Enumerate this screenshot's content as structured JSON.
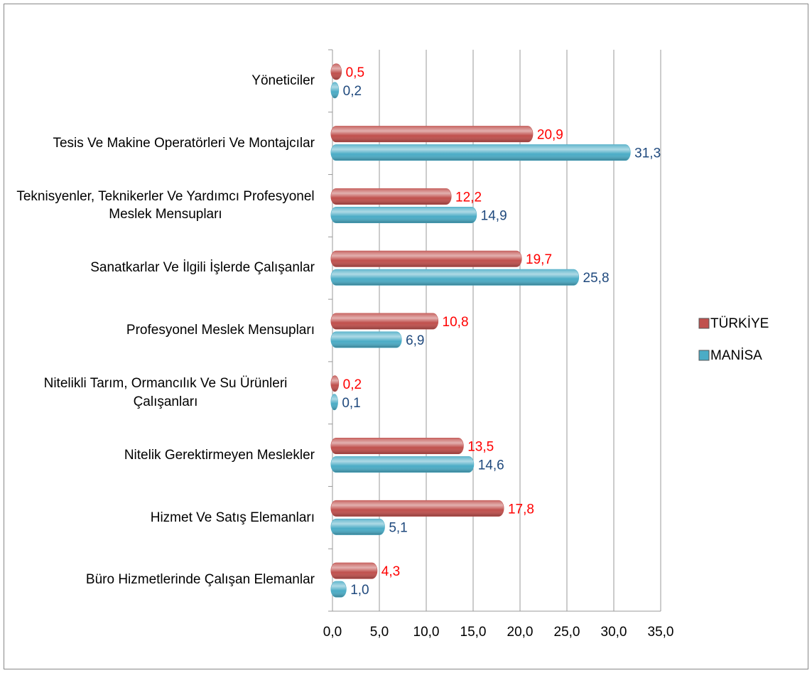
{
  "chart_data": {
    "type": "bar",
    "orientation": "horizontal",
    "categories": [
      "Yöneticiler",
      "Tesis Ve Makine Operatörleri Ve Montajcılar",
      "Teknisyenler, Teknikerler Ve Yardımcı Profesyonel Meslek Mensupları",
      "Sanatkarlar Ve İlgili İşlerde Çalışanlar",
      "Profesyonel Meslek Mensupları",
      "Nitelikli Tarım, Ormancılık Ve Su Ürünleri Çalışanları",
      "Nitelik Gerektirmeyen Meslekler",
      "Hizmet Ve Satış Elemanları",
      "Büro Hizmetlerinde Çalışan Elemanlar"
    ],
    "series": [
      {
        "name": "TÜRKİYE",
        "color": "#c0504d",
        "label_color": "#ff0000",
        "values": [
          0.5,
          20.9,
          12.2,
          19.7,
          10.8,
          0.2,
          13.5,
          17.8,
          4.3
        ],
        "value_labels": [
          "0,5",
          "20,9",
          "12,2",
          "19,7",
          "10,8",
          "0,2",
          "13,5",
          "17,8",
          "4,3"
        ]
      },
      {
        "name": "MANİSA",
        "color": "#4bacc6",
        "label_color": "#1f497d",
        "values": [
          0.2,
          31.3,
          14.9,
          25.8,
          6.9,
          0.1,
          14.6,
          5.1,
          1.0
        ],
        "value_labels": [
          "0,2",
          "31,3",
          "14,9",
          "25,8",
          "6,9",
          "0,1",
          "14,6",
          "5,1",
          "1,0"
        ]
      }
    ],
    "xlim": [
      0,
      35
    ],
    "xticks": [
      {
        "value": 0,
        "label": "0,0"
      },
      {
        "value": 5,
        "label": "5,0"
      },
      {
        "value": 10,
        "label": "10,0"
      },
      {
        "value": 15,
        "label": "15,0"
      },
      {
        "value": 20,
        "label": "20,0"
      },
      {
        "value": 25,
        "label": "25,0"
      },
      {
        "value": 30,
        "label": "30,0"
      },
      {
        "value": 35,
        "label": "35,0"
      }
    ],
    "grid": true,
    "legend": "right"
  }
}
